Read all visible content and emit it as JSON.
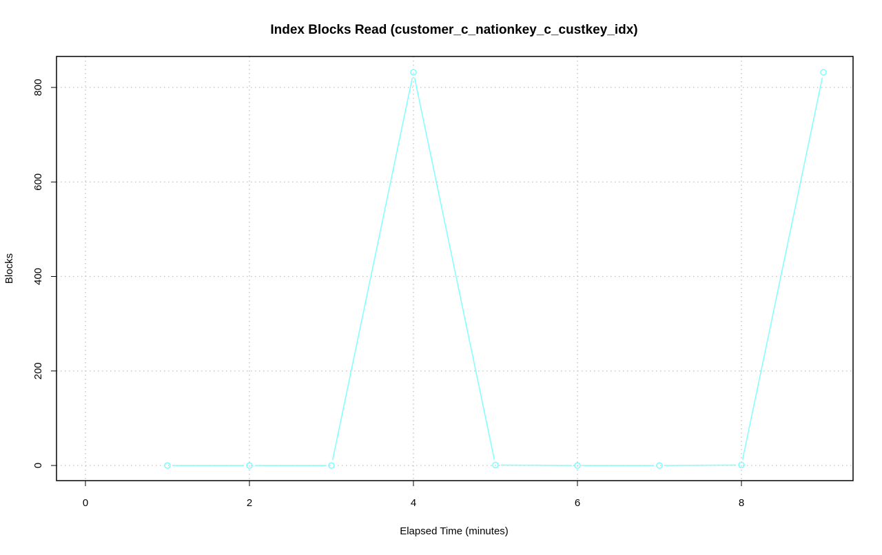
{
  "chart_data": {
    "type": "line",
    "title": "Index Blocks Read (customer_c_nationkey_c_custkey_idx)",
    "xlabel": "Elapsed Time (minutes)",
    "ylabel": "Blocks",
    "xlim": [
      -0.35,
      9.35
    ],
    "ylim": [
      -32,
      865
    ],
    "x_ticks": [
      0,
      2,
      4,
      6,
      8
    ],
    "y_ticks": [
      0,
      200,
      400,
      600,
      800
    ],
    "x_tick_labels": [
      "0",
      "2",
      "4",
      "6",
      "8"
    ],
    "y_tick_labels": [
      "0",
      "200",
      "400",
      "600",
      "800"
    ],
    "grid": true,
    "series": [
      {
        "color": "#7fffff",
        "marker": "open-circle",
        "x": [
          1,
          2,
          3,
          4,
          5,
          6,
          7,
          8,
          9
        ],
        "y": [
          0,
          0,
          0,
          832,
          1,
          0,
          0,
          1,
          832
        ]
      }
    ]
  }
}
